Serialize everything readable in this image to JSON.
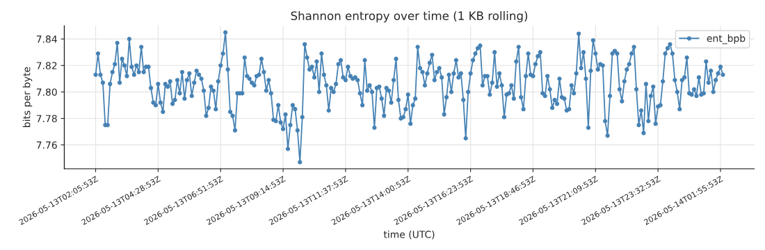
{
  "chart_data": {
    "type": "line",
    "title": "Shannon entropy over time (1 KB rolling)",
    "xlabel": "time (UTC)",
    "ylabel": "bits per byte",
    "x": [
      "2026-05-13T02:05:53",
      "2026-05-13T02:11:23",
      "2026-05-13T02:16:53",
      "2026-05-13T02:22:23",
      "2026-05-13T02:27:53",
      "2026-05-13T02:33:23",
      "2026-05-13T02:38:53",
      "2026-05-13T02:44:23",
      "2026-05-13T02:49:53",
      "2026-05-13T02:55:23",
      "2026-05-13T03:00:53",
      "2026-05-13T03:06:23",
      "2026-05-13T03:11:53",
      "2026-05-13T03:17:23",
      "2026-05-13T03:22:53",
      "2026-05-13T03:28:23",
      "2026-05-13T03:33:53",
      "2026-05-13T03:39:23",
      "2026-05-13T03:44:53",
      "2026-05-13T03:50:23",
      "2026-05-13T03:55:53",
      "2026-05-13T04:01:23",
      "2026-05-13T04:06:53",
      "2026-05-13T04:12:23",
      "2026-05-13T04:17:53",
      "2026-05-13T04:23:23",
      "2026-05-13T04:28:53",
      "2026-05-13T04:34:23",
      "2026-05-13T04:39:53",
      "2026-05-13T04:45:23",
      "2026-05-13T04:50:53",
      "2026-05-13T04:56:23",
      "2026-05-13T05:01:53",
      "2026-05-13T05:07:23",
      "2026-05-13T05:12:53",
      "2026-05-13T05:18:23",
      "2026-05-13T05:23:53",
      "2026-05-13T05:29:23",
      "2026-05-13T05:34:53",
      "2026-05-13T05:40:23",
      "2026-05-13T05:45:53",
      "2026-05-13T05:51:23",
      "2026-05-13T05:56:53",
      "2026-05-13T06:02:23",
      "2026-05-13T06:07:53",
      "2026-05-13T06:13:23",
      "2026-05-13T06:18:53",
      "2026-05-13T06:24:23",
      "2026-05-13T06:29:53",
      "2026-05-13T06:35:23",
      "2026-05-13T06:40:53",
      "2026-05-13T06:46:23",
      "2026-05-13T06:51:53",
      "2026-05-13T06:57:23",
      "2026-05-13T07:02:53",
      "2026-05-13T07:08:23",
      "2026-05-13T07:13:53",
      "2026-05-13T07:19:23",
      "2026-05-13T07:24:53",
      "2026-05-13T07:30:23",
      "2026-05-13T07:35:53",
      "2026-05-13T07:41:23",
      "2026-05-13T07:46:53",
      "2026-05-13T07:52:23",
      "2026-05-13T07:57:53",
      "2026-05-13T08:03:23",
      "2026-05-13T08:08:53",
      "2026-05-13T08:14:23",
      "2026-05-13T08:19:53",
      "2026-05-13T08:25:23",
      "2026-05-13T08:30:53",
      "2026-05-13T08:36:23",
      "2026-05-13T08:41:53",
      "2026-05-13T08:47:23",
      "2026-05-13T08:52:53",
      "2026-05-13T08:58:23",
      "2026-05-13T09:03:53",
      "2026-05-13T09:09:23",
      "2026-05-13T09:14:53",
      "2026-05-13T09:20:23",
      "2026-05-13T09:25:53",
      "2026-05-13T09:31:23",
      "2026-05-13T09:36:53",
      "2026-05-13T09:42:23",
      "2026-05-13T09:47:53",
      "2026-05-13T09:53:23",
      "2026-05-13T09:58:53",
      "2026-05-13T10:04:23",
      "2026-05-13T10:09:53",
      "2026-05-13T10:15:23",
      "2026-05-13T10:20:53",
      "2026-05-13T10:26:23",
      "2026-05-13T10:31:53",
      "2026-05-13T10:37:23",
      "2026-05-13T10:42:53",
      "2026-05-13T10:48:23",
      "2026-05-13T10:53:53",
      "2026-05-13T10:59:23",
      "2026-05-13T11:04:53",
      "2026-05-13T11:10:23",
      "2026-05-13T11:15:53",
      "2026-05-13T11:21:23",
      "2026-05-13T11:26:53",
      "2026-05-13T11:32:23",
      "2026-05-13T11:37:53",
      "2026-05-13T11:43:23",
      "2026-05-13T11:48:53",
      "2026-05-13T11:54:23",
      "2026-05-13T11:59:53",
      "2026-05-13T12:05:23",
      "2026-05-13T12:10:53",
      "2026-05-13T12:16:23",
      "2026-05-13T12:21:53",
      "2026-05-13T12:27:23",
      "2026-05-13T12:32:53",
      "2026-05-13T12:38:23",
      "2026-05-13T12:43:53",
      "2026-05-13T12:49:23",
      "2026-05-13T12:54:53",
      "2026-05-13T13:00:23",
      "2026-05-13T13:05:53",
      "2026-05-13T13:11:23",
      "2026-05-13T13:16:53",
      "2026-05-13T13:22:23",
      "2026-05-13T13:27:53",
      "2026-05-13T13:33:23",
      "2026-05-13T13:38:53",
      "2026-05-13T13:44:23",
      "2026-05-13T13:49:53",
      "2026-05-13T13:55:23",
      "2026-05-13T14:00:53",
      "2026-05-13T14:06:23",
      "2026-05-13T14:11:53",
      "2026-05-13T14:17:23",
      "2026-05-13T14:22:53",
      "2026-05-13T14:28:23",
      "2026-05-13T14:33:53",
      "2026-05-13T14:39:23",
      "2026-05-13T14:44:53",
      "2026-05-13T14:50:23",
      "2026-05-13T14:55:53",
      "2026-05-13T15:01:23",
      "2026-05-13T15:06:53",
      "2026-05-13T15:12:23",
      "2026-05-13T15:17:53",
      "2026-05-13T15:23:23",
      "2026-05-13T15:28:53",
      "2026-05-13T15:34:23",
      "2026-05-13T15:39:53",
      "2026-05-13T15:45:23",
      "2026-05-13T15:50:53",
      "2026-05-13T15:56:23",
      "2026-05-13T16:01:53",
      "2026-05-13T16:07:23",
      "2026-05-13T16:12:53",
      "2026-05-13T16:18:23",
      "2026-05-13T16:23:53",
      "2026-05-13T16:29:23",
      "2026-05-13T16:34:53",
      "2026-05-13T16:40:23",
      "2026-05-13T16:45:53",
      "2026-05-13T16:51:23",
      "2026-05-13T16:56:53",
      "2026-05-13T17:02:23",
      "2026-05-13T17:07:53",
      "2026-05-13T17:13:23",
      "2026-05-13T17:18:53",
      "2026-05-13T17:24:23",
      "2026-05-13T17:29:53",
      "2026-05-13T17:35:23",
      "2026-05-13T17:40:53",
      "2026-05-13T17:46:23",
      "2026-05-13T17:51:53",
      "2026-05-13T17:57:23",
      "2026-05-13T18:02:53",
      "2026-05-13T18:08:23",
      "2026-05-13T18:13:53",
      "2026-05-13T18:19:23",
      "2026-05-13T18:24:53",
      "2026-05-13T18:30:23",
      "2026-05-13T18:35:53",
      "2026-05-13T18:41:23",
      "2026-05-13T18:46:53",
      "2026-05-13T18:52:23",
      "2026-05-13T18:57:53",
      "2026-05-13T19:03:23",
      "2026-05-13T19:08:53",
      "2026-05-13T19:14:23",
      "2026-05-13T19:19:53",
      "2026-05-13T19:25:23",
      "2026-05-13T19:30:53",
      "2026-05-13T19:36:23",
      "2026-05-13T19:41:53",
      "2026-05-13T19:47:23",
      "2026-05-13T19:52:53",
      "2026-05-13T19:58:23",
      "2026-05-13T20:03:53",
      "2026-05-13T20:09:23",
      "2026-05-13T20:14:53",
      "2026-05-13T20:20:23",
      "2026-05-13T20:25:53",
      "2026-05-13T20:31:23",
      "2026-05-13T20:36:53",
      "2026-05-13T20:42:23",
      "2026-05-13T20:47:53",
      "2026-05-13T20:53:23",
      "2026-05-13T20:58:53",
      "2026-05-13T21:04:23",
      "2026-05-13T21:09:53",
      "2026-05-13T21:15:23",
      "2026-05-13T21:20:53",
      "2026-05-13T21:26:23",
      "2026-05-13T21:31:53",
      "2026-05-13T21:37:23",
      "2026-05-13T21:42:53",
      "2026-05-13T21:48:23",
      "2026-05-13T21:53:53",
      "2026-05-13T21:59:23",
      "2026-05-13T22:04:53",
      "2026-05-13T22:10:23",
      "2026-05-13T22:15:53",
      "2026-05-13T22:21:23",
      "2026-05-13T22:26:53",
      "2026-05-13T22:32:23",
      "2026-05-13T22:37:53",
      "2026-05-13T22:43:23",
      "2026-05-13T22:48:53",
      "2026-05-13T22:54:23",
      "2026-05-13T22:59:53",
      "2026-05-13T23:05:23",
      "2026-05-13T23:10:53",
      "2026-05-13T23:16:23",
      "2026-05-13T23:21:53",
      "2026-05-13T23:27:23",
      "2026-05-13T23:32:53",
      "2026-05-13T23:38:23",
      "2026-05-13T23:43:53",
      "2026-05-13T23:49:23",
      "2026-05-13T23:54:53",
      "2026-05-14T00:00:23",
      "2026-05-14T00:05:53",
      "2026-05-14T00:11:23",
      "2026-05-14T00:16:53",
      "2026-05-14T00:22:23",
      "2026-05-14T00:27:53",
      "2026-05-14T00:33:23",
      "2026-05-14T00:38:53",
      "2026-05-14T00:44:23",
      "2026-05-14T00:49:53",
      "2026-05-14T00:55:23",
      "2026-05-14T01:00:53",
      "2026-05-14T01:06:23",
      "2026-05-14T01:11:53",
      "2026-05-14T01:17:23",
      "2026-05-14T01:22:53",
      "2026-05-14T01:28:23",
      "2026-05-14T01:33:53",
      "2026-05-14T01:39:23",
      "2026-05-14T01:44:53",
      "2026-05-14T01:50:23",
      "2026-05-14T01:55:53",
      "2026-05-14T02:01:23"
    ],
    "series": [
      {
        "name": "ent_bpb",
        "color": "#4682b4",
        "values": [
          7.813,
          7.829,
          7.813,
          7.807,
          7.775,
          7.775,
          7.806,
          7.815,
          7.821,
          7.837,
          7.807,
          7.825,
          7.82,
          7.812,
          7.84,
          7.819,
          7.813,
          7.82,
          7.815,
          7.834,
          7.815,
          7.819,
          7.819,
          7.803,
          7.792,
          7.79,
          7.806,
          7.792,
          7.785,
          7.806,
          7.804,
          7.808,
          7.791,
          7.794,
          7.809,
          7.799,
          7.815,
          7.795,
          7.809,
          7.814,
          7.797,
          7.807,
          7.816,
          7.813,
          7.81,
          7.801,
          7.782,
          7.788,
          7.804,
          7.801,
          7.787,
          7.808,
          7.82,
          7.829,
          7.845,
          7.817,
          7.785,
          7.782,
          7.771,
          7.799,
          7.799,
          7.799,
          7.826,
          7.812,
          7.81,
          7.807,
          7.805,
          7.812,
          7.813,
          7.825,
          7.815,
          7.801,
          7.809,
          7.799,
          7.779,
          7.778,
          7.79,
          7.777,
          7.772,
          7.783,
          7.757,
          7.775,
          7.79,
          7.787,
          7.771,
          7.747,
          7.781,
          7.836,
          7.826,
          7.817,
          7.819,
          7.811,
          7.823,
          7.8,
          7.829,
          7.813,
          7.805,
          7.786,
          7.803,
          7.8,
          7.806,
          7.821,
          7.824,
          7.811,
          7.809,
          7.819,
          7.812,
          7.81,
          7.811,
          7.809,
          7.799,
          7.79,
          7.824,
          7.801,
          7.805,
          7.8,
          7.773,
          7.803,
          7.804,
          7.795,
          7.782,
          7.803,
          7.801,
          7.792,
          7.809,
          7.825,
          7.794,
          7.78,
          7.781,
          7.787,
          7.798,
          7.776,
          7.79,
          7.795,
          7.834,
          7.818,
          7.815,
          7.805,
          7.814,
          7.822,
          7.828,
          7.809,
          7.815,
          7.818,
          7.811,
          7.783,
          7.796,
          7.813,
          7.8,
          7.814,
          7.824,
          7.811,
          7.814,
          7.794,
          7.765,
          7.8,
          7.814,
          7.824,
          7.829,
          7.833,
          7.835,
          7.805,
          7.812,
          7.812,
          7.798,
          7.807,
          7.83,
          7.804,
          7.814,
          7.805,
          7.781,
          7.798,
          7.799,
          7.805,
          7.795,
          7.823,
          7.834,
          7.796,
          7.787,
          7.812,
          7.829,
          7.813,
          7.812,
          7.821,
          7.827,
          7.83,
          7.799,
          7.797,
          7.812,
          7.802,
          7.788,
          7.794,
          7.791,
          7.81,
          7.796,
          7.795,
          7.786,
          7.787,
          7.805,
          7.799,
          7.814,
          7.844,
          7.818,
          7.83,
          7.81,
          7.773,
          7.816,
          7.839,
          7.829,
          7.817,
          7.821,
          7.82,
          7.778,
          7.767,
          7.797,
          7.829,
          7.831,
          7.829,
          7.802,
          7.793,
          7.808,
          7.817,
          7.821,
          7.829,
          7.834,
          7.802,
          7.775,
          7.786,
          7.769,
          7.806,
          7.778,
          7.797,
          7.804,
          7.776,
          7.789,
          7.79,
          7.808,
          7.829,
          7.833,
          7.836,
          7.829,
          7.809,
          7.8,
          7.787,
          7.809,
          7.811,
          7.826,
          7.799,
          7.798,
          7.802,
          7.797,
          7.811,
          7.798,
          7.799,
          7.823,
          7.807,
          7.816,
          7.8,
          7.809,
          7.814,
          7.819,
          7.813
        ]
      }
    ],
    "xlim": [
      "2026-05-13T00:54:05",
      "2026-05-14T03:13:11"
    ],
    "xticks": [
      {
        "value": "2026-05-13T02:05:53",
        "label": "2026-05-13T02:05:53Z"
      },
      {
        "value": "2026-05-13T04:28:53",
        "label": "2026-05-13T04:28:53Z"
      },
      {
        "value": "2026-05-13T06:51:53",
        "label": "2026-05-13T06:51:53Z"
      },
      {
        "value": "2026-05-13T09:14:53",
        "label": "2026-05-13T09:14:53Z"
      },
      {
        "value": "2026-05-13T11:37:53",
        "label": "2026-05-13T11:37:53Z"
      },
      {
        "value": "2026-05-13T14:00:53",
        "label": "2026-05-13T14:00:53Z"
      },
      {
        "value": "2026-05-13T16:23:53",
        "label": "2026-05-13T16:23:53Z"
      },
      {
        "value": "2026-05-13T18:46:53",
        "label": "2026-05-13T18:46:53Z"
      },
      {
        "value": "2026-05-13T21:09:53",
        "label": "2026-05-13T21:09:53Z"
      },
      {
        "value": "2026-05-13T23:32:53",
        "label": "2026-05-13T23:32:53Z"
      },
      {
        "value": "2026-05-14T01:55:53",
        "label": "2026-05-14T01:55:53Z"
      }
    ],
    "ylim": [
      7.742,
      7.85
    ],
    "yticks": [
      7.76,
      7.78,
      {
        "value": 7.8,
        "label": "7.80"
      },
      7.82,
      7.84
    ],
    "grid": true,
    "legend": "top right",
    "marker": "circle",
    "line_style": "solid"
  }
}
